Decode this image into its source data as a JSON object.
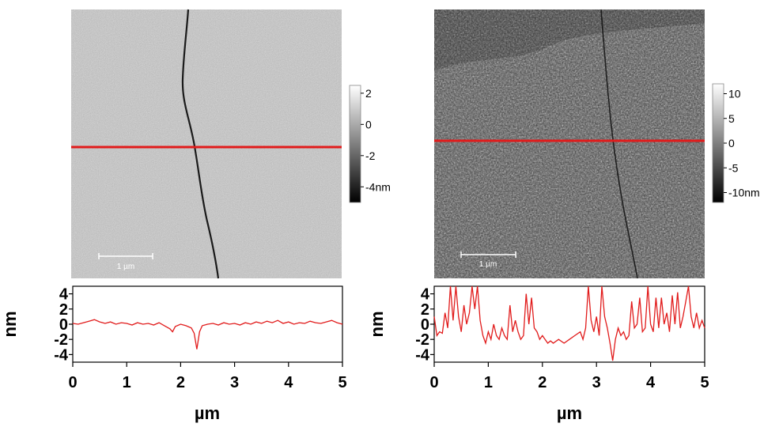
{
  "chart_data": [
    {
      "type": "heatmap",
      "panel": "left-afm-image",
      "colorbar": {
        "ticks": [
          "2",
          "0",
          "-2",
          "-4nm"
        ],
        "range": [
          -5,
          2.5
        ],
        "colormap": "grayscale"
      },
      "scale_bar_label": "1 µm",
      "profile_line_color": "#e11b1b"
    },
    {
      "type": "line",
      "panel": "left-height-profile",
      "xlabel": "µm",
      "ylabel": "nm",
      "xlim": [
        0,
        5
      ],
      "ylim": [
        -5,
        5
      ],
      "x_ticks": [
        "0",
        "1",
        "2",
        "3",
        "4",
        "5"
      ],
      "y_ticks": [
        "4",
        "2",
        "0",
        "-2",
        "-4"
      ],
      "color": "#e11b1b",
      "points": [
        [
          0,
          0.1
        ],
        [
          0.1,
          0.0
        ],
        [
          0.2,
          0.2
        ],
        [
          0.3,
          0.4
        ],
        [
          0.4,
          0.6
        ],
        [
          0.5,
          0.3
        ],
        [
          0.6,
          0.1
        ],
        [
          0.7,
          0.3
        ],
        [
          0.8,
          0.0
        ],
        [
          0.9,
          0.2
        ],
        [
          1.0,
          0.1
        ],
        [
          1.1,
          -0.1
        ],
        [
          1.2,
          0.2
        ],
        [
          1.3,
          0.0
        ],
        [
          1.4,
          0.1
        ],
        [
          1.5,
          -0.1
        ],
        [
          1.6,
          0.2
        ],
        [
          1.7,
          -0.2
        ],
        [
          1.8,
          -0.6
        ],
        [
          1.85,
          -1.0
        ],
        [
          1.9,
          -0.3
        ],
        [
          2.0,
          0.0
        ],
        [
          2.1,
          -0.2
        ],
        [
          2.2,
          -0.5
        ],
        [
          2.25,
          -1.2
        ],
        [
          2.3,
          -3.3
        ],
        [
          2.35,
          -1.0
        ],
        [
          2.4,
          -0.2
        ],
        [
          2.5,
          0.0
        ],
        [
          2.6,
          0.1
        ],
        [
          2.7,
          -0.1
        ],
        [
          2.8,
          0.2
        ],
        [
          2.9,
          0.0
        ],
        [
          3.0,
          0.1
        ],
        [
          3.1,
          -0.1
        ],
        [
          3.2,
          0.2
        ],
        [
          3.3,
          0.0
        ],
        [
          3.4,
          0.3
        ],
        [
          3.5,
          0.1
        ],
        [
          3.6,
          0.4
        ],
        [
          3.7,
          0.2
        ],
        [
          3.8,
          0.5
        ],
        [
          3.9,
          0.1
        ],
        [
          4.0,
          0.3
        ],
        [
          4.1,
          0.0
        ],
        [
          4.2,
          0.2
        ],
        [
          4.3,
          0.1
        ],
        [
          4.4,
          0.4
        ],
        [
          4.5,
          0.2
        ],
        [
          4.6,
          0.1
        ],
        [
          4.7,
          0.3
        ],
        [
          4.8,
          0.5
        ],
        [
          4.9,
          0.2
        ],
        [
          5.0,
          0.0
        ]
      ]
    },
    {
      "type": "heatmap",
      "panel": "right-afm-image",
      "colorbar": {
        "ticks": [
          "10",
          "5",
          "0",
          "-5",
          "-10nm"
        ],
        "range": [
          -12,
          12
        ],
        "colormap": "grayscale"
      },
      "scale_bar_label": "1 µm",
      "profile_line_color": "#e11b1b"
    },
    {
      "type": "line",
      "panel": "right-height-profile",
      "xlabel": "µm",
      "ylabel": "nm",
      "xlim": [
        0,
        5
      ],
      "ylim": [
        -5,
        5
      ],
      "x_ticks": [
        "0",
        "1",
        "2",
        "3",
        "4",
        "5"
      ],
      "y_ticks": [
        "4",
        "2",
        "0",
        "-2",
        "-4"
      ],
      "color": "#e11b1b",
      "points": [
        [
          0,
          1.0
        ],
        [
          0.05,
          -1.5
        ],
        [
          0.1,
          -1.0
        ],
        [
          0.15,
          -1.2
        ],
        [
          0.2,
          1.5
        ],
        [
          0.25,
          -0.5
        ],
        [
          0.3,
          5.0
        ],
        [
          0.35,
          0.5
        ],
        [
          0.4,
          5.0
        ],
        [
          0.45,
          1.0
        ],
        [
          0.5,
          -1.0
        ],
        [
          0.55,
          2.5
        ],
        [
          0.6,
          0.0
        ],
        [
          0.65,
          1.5
        ],
        [
          0.7,
          5.0
        ],
        [
          0.75,
          2.0
        ],
        [
          0.8,
          5.0
        ],
        [
          0.85,
          0.5
        ],
        [
          0.9,
          -1.5
        ],
        [
          0.95,
          -2.5
        ],
        [
          1.0,
          -1.0
        ],
        [
          1.05,
          -2.0
        ],
        [
          1.1,
          0.0
        ],
        [
          1.15,
          -1.5
        ],
        [
          1.2,
          -2.0
        ],
        [
          1.25,
          -0.5
        ],
        [
          1.3,
          -1.5
        ],
        [
          1.35,
          -2.0
        ],
        [
          1.4,
          2.5
        ],
        [
          1.45,
          -1.0
        ],
        [
          1.5,
          0.5
        ],
        [
          1.55,
          -1.0
        ],
        [
          1.6,
          -2.0
        ],
        [
          1.65,
          -1.5
        ],
        [
          1.7,
          4.0
        ],
        [
          1.75,
          0.0
        ],
        [
          1.8,
          3.5
        ],
        [
          1.85,
          -0.5
        ],
        [
          1.9,
          -1.0
        ],
        [
          1.95,
          -2.0
        ],
        [
          2.0,
          -1.5
        ],
        [
          2.05,
          -2.0
        ],
        [
          2.1,
          -2.5
        ],
        [
          2.15,
          -2.2
        ],
        [
          2.2,
          -2.5
        ],
        [
          2.3,
          -2.0
        ],
        [
          2.4,
          -2.5
        ],
        [
          2.5,
          -2.0
        ],
        [
          2.6,
          -1.5
        ],
        [
          2.7,
          -1.0
        ],
        [
          2.75,
          -2.0
        ],
        [
          2.8,
          -0.5
        ],
        [
          2.85,
          5.0
        ],
        [
          2.9,
          0.5
        ],
        [
          2.95,
          -1.0
        ],
        [
          3.0,
          1.0
        ],
        [
          3.05,
          -1.5
        ],
        [
          3.1,
          5.0
        ],
        [
          3.15,
          1.0
        ],
        [
          3.2,
          -0.5
        ],
        [
          3.25,
          -2.5
        ],
        [
          3.3,
          -4.8
        ],
        [
          3.35,
          -2.0
        ],
        [
          3.4,
          -0.5
        ],
        [
          3.45,
          -1.5
        ],
        [
          3.5,
          -1.0
        ],
        [
          3.55,
          -2.0
        ],
        [
          3.6,
          -1.5
        ],
        [
          3.65,
          3.0
        ],
        [
          3.7,
          -0.5
        ],
        [
          3.75,
          0.0
        ],
        [
          3.8,
          3.5
        ],
        [
          3.85,
          -1.0
        ],
        [
          3.9,
          -0.5
        ],
        [
          3.95,
          5.0
        ],
        [
          4.0,
          0.0
        ],
        [
          4.05,
          -1.0
        ],
        [
          4.1,
          3.5
        ],
        [
          4.15,
          -0.5
        ],
        [
          4.2,
          3.5
        ],
        [
          4.25,
          0.0
        ],
        [
          4.3,
          1.5
        ],
        [
          4.35,
          -1.0
        ],
        [
          4.4,
          3.8
        ],
        [
          4.45,
          0.0
        ],
        [
          4.5,
          4.2
        ],
        [
          4.55,
          -0.5
        ],
        [
          4.6,
          1.0
        ],
        [
          4.65,
          3.0
        ],
        [
          4.7,
          5.0
        ],
        [
          4.75,
          1.0
        ],
        [
          4.8,
          -0.5
        ],
        [
          4.85,
          1.5
        ],
        [
          4.9,
          -0.5
        ],
        [
          4.95,
          0.5
        ],
        [
          5.0,
          -0.5
        ]
      ]
    }
  ]
}
